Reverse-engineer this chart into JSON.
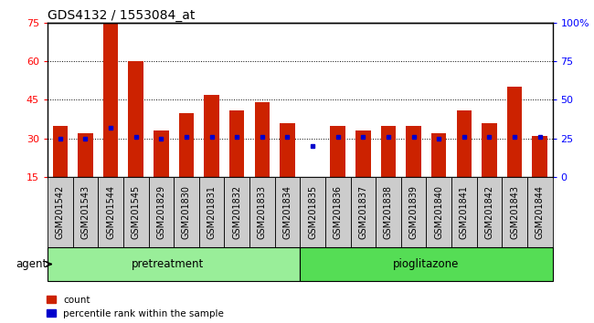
{
  "title": "GDS4132 / 1553084_at",
  "samples": [
    "GSM201542",
    "GSM201543",
    "GSM201544",
    "GSM201545",
    "GSM201829",
    "GSM201830",
    "GSM201831",
    "GSM201832",
    "GSM201833",
    "GSM201834",
    "GSM201835",
    "GSM201836",
    "GSM201837",
    "GSM201838",
    "GSM201839",
    "GSM201840",
    "GSM201841",
    "GSM201842",
    "GSM201843",
    "GSM201844"
  ],
  "counts": [
    35,
    32,
    75,
    60,
    33,
    40,
    47,
    41,
    44,
    36,
    15,
    35,
    33,
    35,
    35,
    32,
    41,
    36,
    50,
    31
  ],
  "percentile_ranks": [
    25,
    25,
    32,
    26,
    25,
    26,
    26,
    26,
    26,
    26,
    20,
    26,
    26,
    26,
    26,
    25,
    26,
    26,
    26,
    26
  ],
  "bar_color": "#cc2200",
  "dot_color": "#0000cc",
  "ylim_left": [
    15,
    75
  ],
  "ylim_right": [
    0,
    100
  ],
  "yticks_left": [
    15,
    30,
    45,
    60,
    75
  ],
  "yticks_right": [
    0,
    25,
    50,
    75,
    100
  ],
  "group_labels": [
    "pretreatment",
    "pioglitazone"
  ],
  "group_split": 10,
  "n_samples": 20,
  "agent_label": "agent",
  "legend_count_label": "count",
  "legend_pct_label": "percentile rank within the sample",
  "cell_bg": "#cccccc",
  "pretreat_color": "#99ee99",
  "pioglit_color": "#55dd55",
  "plot_bg": "#ffffff",
  "bar_width": 0.6,
  "title_fontsize": 10,
  "tick_fontsize": 7,
  "axis_fontsize": 8
}
